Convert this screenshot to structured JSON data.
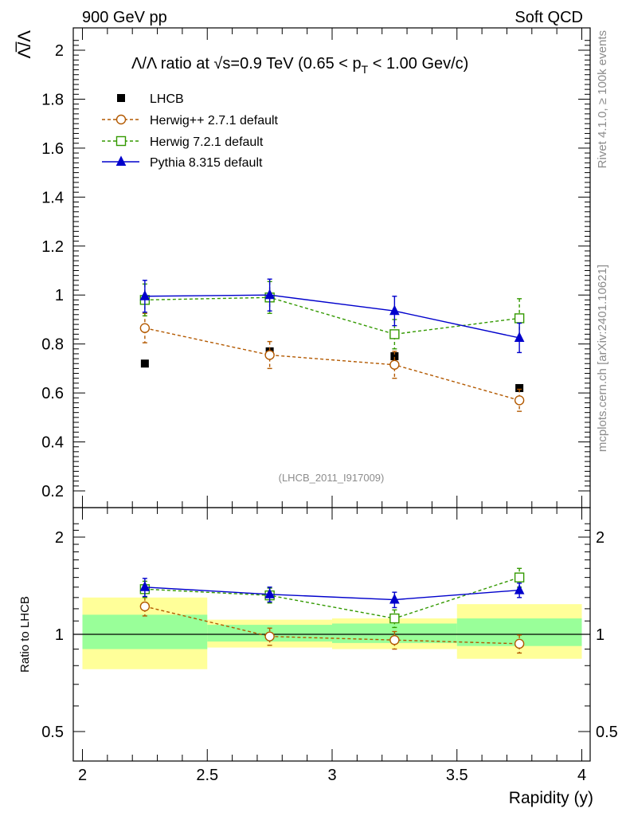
{
  "header": {
    "left": "900 GeV pp",
    "right": "Soft QCD",
    "side_top": "Rivet 4.1.0, ≥ 100k events",
    "side_bottom": "mcplots.cern.ch [arXiv:2401.10621]"
  },
  "chart_data": {
    "type": "line",
    "title": "Λ̅/Λ ratio at √s=0.9 TeV (0.65 < pT < 1.00 Gev/c)",
    "title_parts": {
      "pre": "Λ/Λ ratio at √",
      "mid": "s=0.9 TeV (0.65 < p",
      "sub": "T",
      "post": " < 1.00 Gev/c)"
    },
    "ylabel": "Λ̅/Λ",
    "xlabel": "Rapidity (y)",
    "ratio_ylabel": "Ratio to LHCB",
    "analysis_id": "(LHCB_2011_I917009)",
    "xlim": [
      2.0,
      4.0
    ],
    "ylim": [
      0.15,
      2.1
    ],
    "ratio_ylim": [
      0.4,
      2.3
    ],
    "x_ticks": [
      "2",
      "2.5",
      "3",
      "3.5",
      "4"
    ],
    "y_ticks": [
      "0.2",
      "0.4",
      "0.6",
      "0.8",
      "1",
      "1.2",
      "1.4",
      "1.6",
      "1.8",
      "2"
    ],
    "ratio_ticks": [
      "0.5",
      "1",
      "2"
    ],
    "x": [
      2.25,
      2.75,
      3.25,
      3.75
    ],
    "bins": [
      [
        2.0,
        2.5
      ],
      [
        2.5,
        3.0
      ],
      [
        3.0,
        3.5
      ],
      [
        3.5,
        4.0
      ]
    ],
    "data": {
      "name": "LHCB",
      "values": [
        0.72,
        0.77,
        0.75,
        0.62
      ],
      "band_1sigma": [
        [
          0.9,
          1.15
        ],
        [
          0.95,
          1.07
        ],
        [
          0.94,
          1.08
        ],
        [
          0.92,
          1.12
        ]
      ],
      "band_2sigma": [
        [
          0.78,
          1.3
        ],
        [
          0.91,
          1.11
        ],
        [
          0.9,
          1.12
        ],
        [
          0.84,
          1.24
        ]
      ]
    },
    "series": [
      {
        "name": "Herwig++ 2.7.1 default",
        "color": "#b35900",
        "marker": "circle",
        "dash": true,
        "values": [
          0.865,
          0.755,
          0.715,
          0.57
        ],
        "errors": [
          0.06,
          0.055,
          0.055,
          0.045
        ],
        "ratio": [
          1.22,
          0.985,
          0.96,
          0.935
        ],
        "ratio_errors": [
          0.08,
          0.06,
          0.06,
          0.06
        ]
      },
      {
        "name": "Herwig 7.2.1 default",
        "color": "#339900",
        "marker": "square",
        "dash": true,
        "values": [
          0.98,
          0.99,
          0.84,
          0.905
        ],
        "errors": [
          0.065,
          0.065,
          0.06,
          0.08
        ],
        "ratio": [
          1.38,
          1.32,
          1.12,
          1.5
        ],
        "ratio_errors": [
          0.08,
          0.07,
          0.07,
          0.1
        ]
      },
      {
        "name": "Pythia 8.315 default",
        "color": "#0000cc",
        "marker": "triangle",
        "dash": false,
        "values": [
          0.995,
          1.0,
          0.935,
          0.825
        ],
        "errors": [
          0.065,
          0.065,
          0.06,
          0.06
        ],
        "ratio": [
          1.4,
          1.33,
          1.28,
          1.37
        ],
        "ratio_errors": [
          0.09,
          0.07,
          0.07,
          0.07
        ]
      }
    ]
  }
}
